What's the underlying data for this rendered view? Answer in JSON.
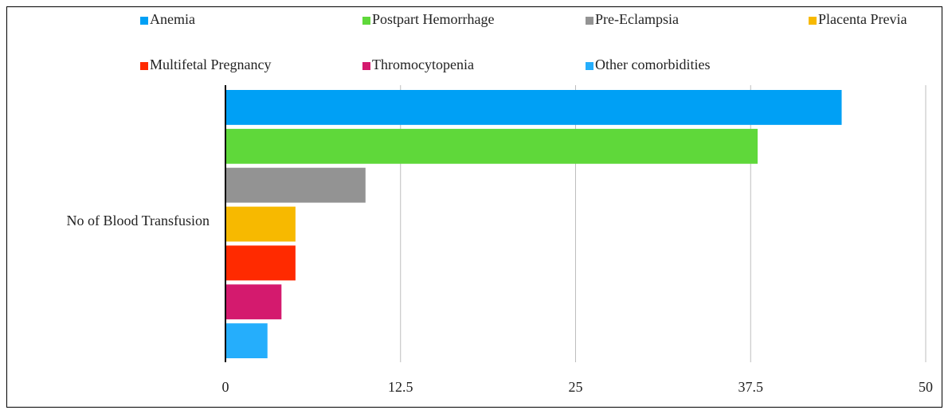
{
  "chart_data": {
    "type": "bar",
    "orientation": "horizontal",
    "categories": [
      "No of Blood Transfusion"
    ],
    "series": [
      {
        "name": "Anemia",
        "color": "#00a0f5",
        "values": [
          44
        ]
      },
      {
        "name": "Postpart Hemorrhage",
        "color": "#5fd83a",
        "values": [
          38
        ]
      },
      {
        "name": "Pre-Eclampsia",
        "color": "#939393",
        "values": [
          10
        ]
      },
      {
        "name": "Placenta Previa",
        "color": "#f7b900",
        "values": [
          5
        ]
      },
      {
        "name": "Multifetal Pregnancy",
        "color": "#ff2a00",
        "values": [
          5
        ]
      },
      {
        "name": "Thromocytopenia",
        "color": "#d41a6e",
        "values": [
          4
        ]
      },
      {
        "name": "Other comorbidities",
        "color": "#25aefc",
        "values": [
          3
        ]
      }
    ],
    "xlim": [
      0,
      50
    ],
    "xticks": [
      0,
      12.5,
      25,
      37.5,
      50
    ],
    "grid": true,
    "legend": "top"
  }
}
